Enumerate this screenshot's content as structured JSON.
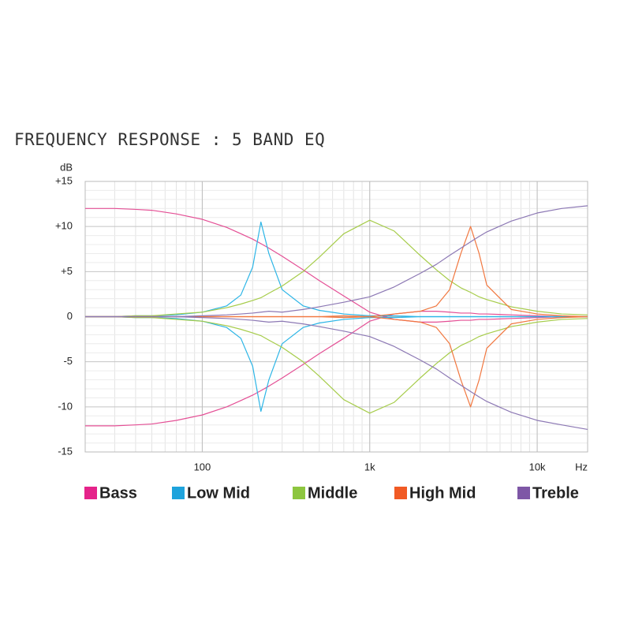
{
  "chart_data": {
    "type": "line",
    "title": "FREQUENCY RESPONSE : 5 BAND EQ",
    "y_label": "dB",
    "x_label": "Hz",
    "log_x": true,
    "grid": true,
    "xlim": [
      20,
      20000
    ],
    "ylim": [
      -15,
      15
    ],
    "xticks": [
      100,
      {
        "value": 1000,
        "label": "1k"
      },
      {
        "value": 10000,
        "label": "10k"
      }
    ],
    "yticks": [
      {
        "value": 15,
        "label": "+15"
      },
      {
        "value": 10,
        "label": "+10"
      },
      {
        "value": 5,
        "label": "+5"
      },
      0,
      -5,
      -10,
      -15
    ],
    "xgrid": [
      20,
      30,
      40,
      50,
      60,
      70,
      80,
      90,
      100,
      200,
      300,
      400,
      500,
      600,
      700,
      800,
      900,
      1000,
      2000,
      3000,
      4000,
      5000,
      6000,
      7000,
      8000,
      9000,
      10000,
      20000
    ],
    "ygrid": [
      -14,
      -13,
      -12,
      -11,
      -9,
      -8,
      -7,
      -6,
      -4,
      -3,
      -2,
      -1,
      1,
      2,
      3,
      4,
      6,
      7,
      8,
      9,
      11,
      12,
      13,
      14
    ],
    "x": [
      20,
      30,
      40,
      50,
      70,
      100,
      140,
      170,
      200,
      224,
      250,
      300,
      400,
      500,
      700,
      1000,
      1400,
      2000,
      2500,
      3000,
      3500,
      4000,
      4500,
      5000,
      7000,
      10000,
      14000,
      20000
    ],
    "series": [
      {
        "name": "Bass",
        "color": "#e44f95",
        "legend_color": "#e5238a",
        "values": [
          [
            12,
            12,
            11.9,
            11.8,
            11.4,
            10.8,
            9.9,
            9.2,
            8.6,
            8.1,
            7.6,
            6.7,
            5.2,
            4.0,
            2.3,
            0.5,
            -0.3,
            -0.6,
            -0.6,
            -0.5,
            -0.4,
            -0.4,
            -0.3,
            -0.3,
            -0.2,
            -0.1,
            0,
            0
          ],
          [
            -12.1,
            -12.1,
            -12,
            -11.9,
            -11.5,
            -10.9,
            -10,
            -9.3,
            -8.7,
            -8.2,
            -7.7,
            -6.8,
            -5.3,
            -4.1,
            -2.4,
            -0.5,
            0.3,
            0.6,
            0.6,
            0.5,
            0.4,
            0.4,
            0.3,
            0.3,
            0.2,
            0.1,
            0,
            0
          ]
        ]
      },
      {
        "name": "Low Mid",
        "color": "#2cb5e6",
        "legend_color": "#1ea3dc",
        "values": [
          [
            0,
            0,
            0.1,
            0.1,
            0.2,
            0.5,
            1.2,
            2.4,
            5.5,
            10.5,
            7,
            3,
            1.2,
            0.7,
            0.3,
            0.1,
            0.1,
            0,
            0,
            0,
            0,
            0,
            0,
            0,
            0,
            0,
            0,
            0
          ],
          [
            0,
            0,
            -0.1,
            -0.1,
            -0.2,
            -0.5,
            -1.2,
            -2.4,
            -5.5,
            -10.5,
            -7,
            -3,
            -1.2,
            -0.7,
            -0.3,
            -0.1,
            -0.1,
            0,
            0,
            0,
            0,
            0,
            0,
            0,
            0,
            0,
            0,
            0
          ]
        ]
      },
      {
        "name": "Middle",
        "color": "#a6cc4a",
        "legend_color": "#8dc63f",
        "values": [
          [
            0,
            0,
            0.1,
            0.1,
            0.3,
            0.5,
            1,
            1.4,
            1.8,
            2.1,
            2.6,
            3.4,
            5,
            6.6,
            9.2,
            10.7,
            9.5,
            6.8,
            5.2,
            4,
            3.2,
            2.7,
            2.2,
            1.9,
            1.1,
            0.6,
            0.3,
            0.2
          ],
          [
            0,
            0,
            -0.1,
            -0.1,
            -0.3,
            -0.5,
            -1,
            -1.4,
            -1.8,
            -2.1,
            -2.6,
            -3.4,
            -5,
            -6.6,
            -9.2,
            -10.7,
            -9.5,
            -6.8,
            -5.2,
            -4,
            -3.2,
            -2.7,
            -2.2,
            -1.9,
            -1.1,
            -0.6,
            -0.3,
            -0.2
          ]
        ]
      },
      {
        "name": "High Mid",
        "color": "#f1773f",
        "legend_color": "#f15a24",
        "values": [
          [
            0,
            0,
            0,
            0,
            0,
            0,
            0,
            0,
            0,
            0,
            0,
            0,
            0,
            0,
            0.1,
            0,
            0.3,
            0.6,
            1.2,
            3,
            7,
            10,
            7,
            3.5,
            0.8,
            0.3,
            0.1,
            0
          ],
          [
            0,
            0,
            0,
            0,
            0,
            0,
            0,
            0,
            0,
            0,
            0,
            0,
            0,
            0,
            -0.1,
            0,
            -0.3,
            -0.6,
            -1.2,
            -3,
            -7,
            -10,
            -7,
            -3.5,
            -0.8,
            -0.3,
            -0.1,
            0
          ]
        ]
      },
      {
        "name": "Treble",
        "color": "#8c78b4",
        "legend_color": "#7e57a6",
        "values": [
          [
            0,
            0,
            0,
            0,
            0,
            0.1,
            0.2,
            0.3,
            0.4,
            0.5,
            0.6,
            0.5,
            0.8,
            1.1,
            1.6,
            2.2,
            3.3,
            4.8,
            5.8,
            6.8,
            7.6,
            8.3,
            8.9,
            9.4,
            10.6,
            11.5,
            12,
            12.3
          ],
          [
            0,
            0,
            0,
            0,
            0,
            -0.1,
            -0.2,
            -0.3,
            -0.4,
            -0.5,
            -0.6,
            -0.5,
            -0.8,
            -1.1,
            -1.6,
            -2.2,
            -3.3,
            -4.8,
            -5.8,
            -6.8,
            -7.6,
            -8.3,
            -8.9,
            -9.4,
            -10.6,
            -11.5,
            -12,
            -12.5
          ]
        ]
      }
    ]
  }
}
